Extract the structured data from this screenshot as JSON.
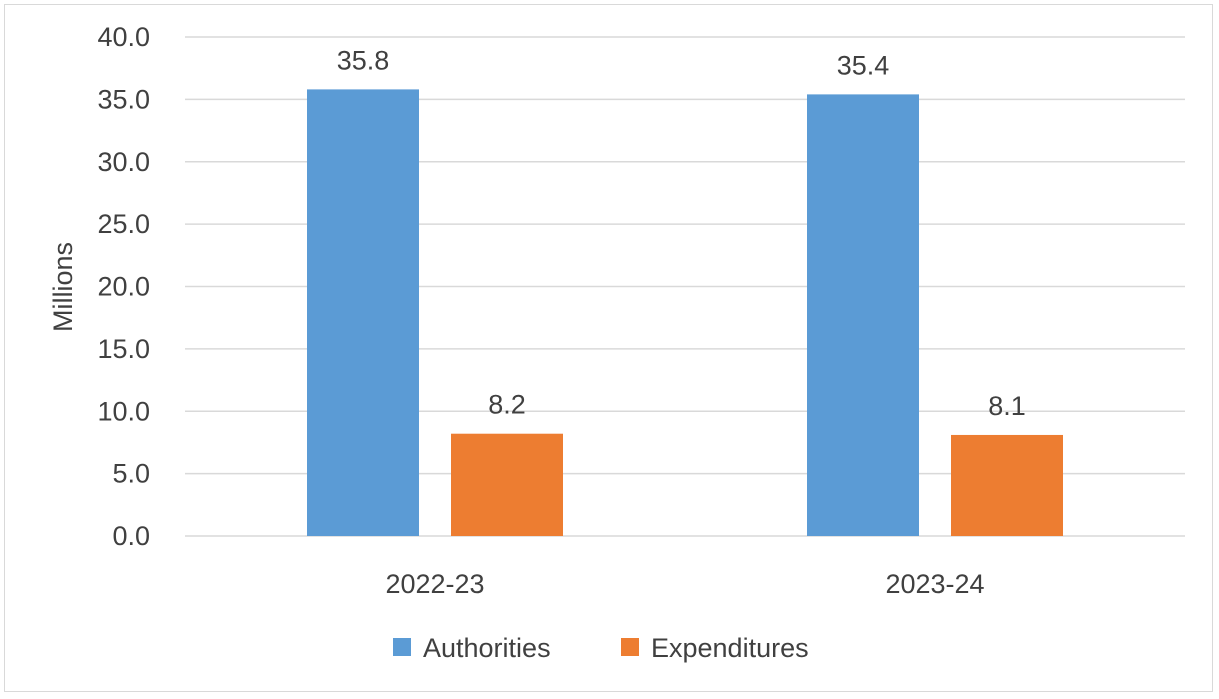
{
  "chart_data": {
    "type": "bar",
    "categories": [
      "2022-23",
      "2023-24"
    ],
    "series": [
      {
        "name": "Authorities",
        "values": [
          35.8,
          35.4
        ],
        "labels": [
          "35.8",
          "35.4"
        ],
        "color": "#5b9bd5"
      },
      {
        "name": "Expenditures",
        "values": [
          8.2,
          8.1
        ],
        "labels": [
          "8.2",
          "8.1"
        ],
        "color": "#ed7d31"
      }
    ],
    "title": "",
    "xlabel": "",
    "ylabel": "Millions",
    "ylim": [
      0,
      40
    ],
    "yticks": [
      0,
      5,
      10,
      15,
      20,
      25,
      30,
      35,
      40
    ],
    "ytick_labels": [
      "0.0",
      "5.0",
      "10.0",
      "15.0",
      "20.0",
      "25.0",
      "30.0",
      "35.0",
      "40.0"
    ],
    "grid": true,
    "legend_position": "bottom",
    "gridline_color": "#d9d9d9"
  }
}
